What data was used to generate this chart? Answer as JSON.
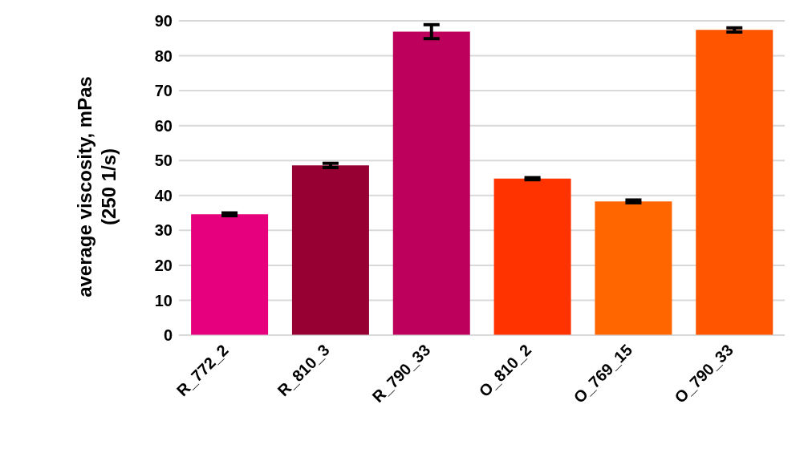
{
  "chart_data": {
    "type": "bar",
    "ylabel": "average viscosity, mPas\n(250 1/s)",
    "categories": [
      "R_772_2",
      "R_810_3",
      "R_790_33",
      "O_810_2",
      "O_769_15",
      "O_790_33"
    ],
    "values": [
      34.6,
      48.6,
      86.9,
      44.8,
      38.3,
      87.4
    ],
    "errors": [
      0.4,
      0.6,
      2,
      0.3,
      0.4,
      0.6
    ],
    "colors": [
      "#e6007e",
      "#960032",
      "#bc005c",
      "#ff3300",
      "#ff6600",
      "#ff5500"
    ],
    "ylim": [
      0,
      90
    ],
    "yticks": [
      0,
      10,
      20,
      30,
      40,
      50,
      60,
      70,
      80,
      90
    ],
    "grid": "y"
  }
}
